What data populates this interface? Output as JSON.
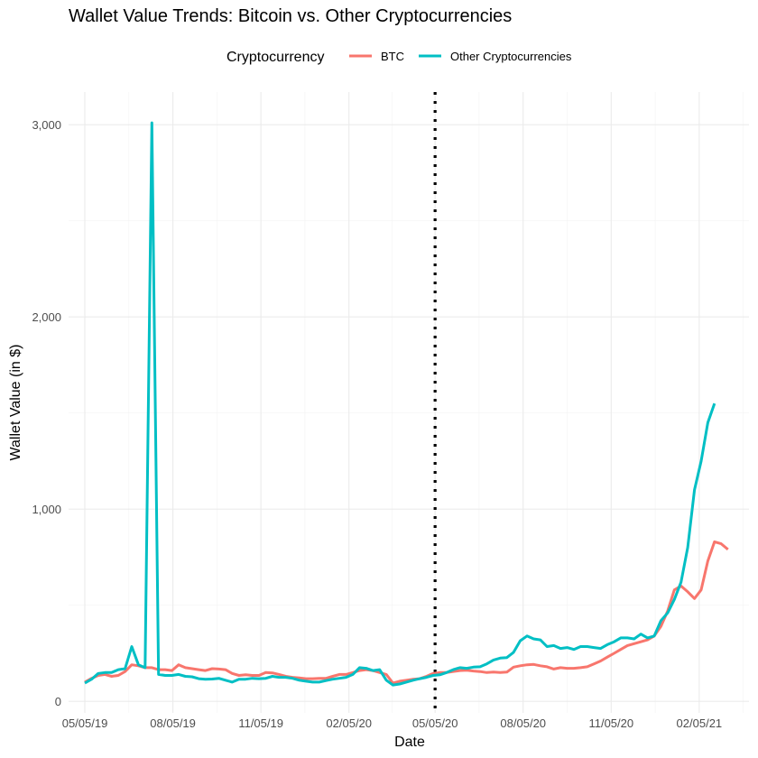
{
  "chart_data": {
    "type": "line",
    "title": "Wallet Value Trends: Bitcoin vs. Other Cryptocurrencies",
    "xlabel": "Date",
    "ylabel": "Wallet Value (in $)",
    "x_tick_labels": [
      "05/05/19",
      "08/05/19",
      "11/05/19",
      "02/05/20",
      "05/05/20",
      "08/05/20",
      "11/05/20",
      "02/05/21"
    ],
    "x_tick_values": [
      "2019-05-05",
      "2019-08-05",
      "2019-11-05",
      "2020-02-05",
      "2020-05-05",
      "2020-08-05",
      "2020-11-05",
      "2021-02-05"
    ],
    "x_range": [
      "2019-04-18",
      "2021-03-29"
    ],
    "y_tick_labels": [
      "0",
      "1,000",
      "2,000",
      "3,000"
    ],
    "y_tick_values": [
      0,
      1000,
      2000,
      3000
    ],
    "ylim": [
      -60,
      3170
    ],
    "grid": true,
    "legend": {
      "title": "Cryptocurrency",
      "placement": "top"
    },
    "reference_line": {
      "x": "2020-05-05",
      "style": "dotted",
      "color": "#000000"
    },
    "series": [
      {
        "name": "BTC",
        "color": "#F8766D",
        "points": [
          [
            "2019-05-05",
            100
          ],
          [
            "2019-05-12",
            120
          ],
          [
            "2019-05-19",
            135
          ],
          [
            "2019-05-26",
            140
          ],
          [
            "2019-06-02",
            130
          ],
          [
            "2019-06-09",
            135
          ],
          [
            "2019-06-16",
            155
          ],
          [
            "2019-06-23",
            190
          ],
          [
            "2019-06-30",
            185
          ],
          [
            "2019-07-07",
            175
          ],
          [
            "2019-07-14",
            175
          ],
          [
            "2019-07-21",
            165
          ],
          [
            "2019-07-28",
            165
          ],
          [
            "2019-08-04",
            160
          ],
          [
            "2019-08-11",
            190
          ],
          [
            "2019-08-18",
            175
          ],
          [
            "2019-08-25",
            170
          ],
          [
            "2019-09-01",
            165
          ],
          [
            "2019-09-08",
            160
          ],
          [
            "2019-09-15",
            170
          ],
          [
            "2019-09-22",
            168
          ],
          [
            "2019-09-29",
            165
          ],
          [
            "2019-10-06",
            145
          ],
          [
            "2019-10-13",
            135
          ],
          [
            "2019-10-20",
            138
          ],
          [
            "2019-10-27",
            135
          ],
          [
            "2019-11-03",
            135
          ],
          [
            "2019-11-10",
            150
          ],
          [
            "2019-11-17",
            148
          ],
          [
            "2019-11-24",
            140
          ],
          [
            "2019-12-01",
            130
          ],
          [
            "2019-12-08",
            125
          ],
          [
            "2019-12-15",
            122
          ],
          [
            "2019-12-22",
            118
          ],
          [
            "2019-12-29",
            118
          ],
          [
            "2020-01-05",
            120
          ],
          [
            "2020-01-12",
            120
          ],
          [
            "2020-01-19",
            130
          ],
          [
            "2020-01-26",
            140
          ],
          [
            "2020-02-02",
            140
          ],
          [
            "2020-02-09",
            150
          ],
          [
            "2020-02-16",
            160
          ],
          [
            "2020-02-23",
            165
          ],
          [
            "2020-03-01",
            160
          ],
          [
            "2020-03-08",
            150
          ],
          [
            "2020-03-15",
            140
          ],
          [
            "2020-03-22",
            95
          ],
          [
            "2020-03-29",
            105
          ],
          [
            "2020-04-05",
            110
          ],
          [
            "2020-04-12",
            115
          ],
          [
            "2020-04-19",
            118
          ],
          [
            "2020-04-26",
            130
          ],
          [
            "2020-05-03",
            145
          ],
          [
            "2020-05-10",
            150
          ],
          [
            "2020-05-17",
            150
          ],
          [
            "2020-05-24",
            155
          ],
          [
            "2020-05-31",
            160
          ],
          [
            "2020-06-07",
            162
          ],
          [
            "2020-06-14",
            158
          ],
          [
            "2020-06-21",
            155
          ],
          [
            "2020-06-28",
            150
          ],
          [
            "2020-07-05",
            152
          ],
          [
            "2020-07-12",
            150
          ],
          [
            "2020-07-19",
            152
          ],
          [
            "2020-07-26",
            178
          ],
          [
            "2020-08-02",
            185
          ],
          [
            "2020-08-09",
            190
          ],
          [
            "2020-08-16",
            192
          ],
          [
            "2020-08-23",
            185
          ],
          [
            "2020-08-30",
            180
          ],
          [
            "2020-09-06",
            168
          ],
          [
            "2020-09-13",
            175
          ],
          [
            "2020-09-20",
            172
          ],
          [
            "2020-09-27",
            172
          ],
          [
            "2020-10-04",
            175
          ],
          [
            "2020-10-11",
            180
          ],
          [
            "2020-10-18",
            195
          ],
          [
            "2020-10-25",
            210
          ],
          [
            "2020-11-01",
            230
          ],
          [
            "2020-11-08",
            250
          ],
          [
            "2020-11-15",
            270
          ],
          [
            "2020-11-22",
            290
          ],
          [
            "2020-11-29",
            300
          ],
          [
            "2020-12-06",
            310
          ],
          [
            "2020-12-13",
            320
          ],
          [
            "2020-12-20",
            340
          ],
          [
            "2020-12-27",
            390
          ],
          [
            "2021-01-03",
            470
          ],
          [
            "2021-01-10",
            580
          ],
          [
            "2021-01-17",
            600
          ],
          [
            "2021-01-24",
            570
          ],
          [
            "2021-01-31",
            535
          ],
          [
            "2021-02-07",
            580
          ],
          [
            "2021-02-14",
            730
          ],
          [
            "2021-02-21",
            830
          ],
          [
            "2021-02-28",
            820
          ],
          [
            "2021-03-07",
            790
          ]
        ]
      },
      {
        "name": "Other Cryptocurrencies",
        "color": "#00BFC4",
        "points": [
          [
            "2019-05-05",
            95
          ],
          [
            "2019-05-12",
            115
          ],
          [
            "2019-05-19",
            145
          ],
          [
            "2019-05-26",
            150
          ],
          [
            "2019-06-02",
            150
          ],
          [
            "2019-06-09",
            165
          ],
          [
            "2019-06-16",
            170
          ],
          [
            "2019-06-23",
            285
          ],
          [
            "2019-06-30",
            190
          ],
          [
            "2019-07-07",
            175
          ],
          [
            "2019-07-14",
            3010
          ],
          [
            "2019-07-21",
            140
          ],
          [
            "2019-07-28",
            135
          ],
          [
            "2019-08-04",
            135
          ],
          [
            "2019-08-11",
            140
          ],
          [
            "2019-08-18",
            130
          ],
          [
            "2019-08-25",
            128
          ],
          [
            "2019-09-01",
            118
          ],
          [
            "2019-09-08",
            115
          ],
          [
            "2019-09-15",
            116
          ],
          [
            "2019-09-22",
            120
          ],
          [
            "2019-09-29",
            110
          ],
          [
            "2019-10-06",
            100
          ],
          [
            "2019-10-13",
            115
          ],
          [
            "2019-10-20",
            115
          ],
          [
            "2019-10-27",
            120
          ],
          [
            "2019-11-03",
            118
          ],
          [
            "2019-11-10",
            120
          ],
          [
            "2019-11-17",
            130
          ],
          [
            "2019-11-24",
            125
          ],
          [
            "2019-12-01",
            125
          ],
          [
            "2019-12-08",
            120
          ],
          [
            "2019-12-15",
            110
          ],
          [
            "2019-12-22",
            105
          ],
          [
            "2019-12-29",
            100
          ],
          [
            "2020-01-05",
            100
          ],
          [
            "2020-01-12",
            108
          ],
          [
            "2020-01-19",
            115
          ],
          [
            "2020-01-26",
            120
          ],
          [
            "2020-02-02",
            125
          ],
          [
            "2020-02-09",
            140
          ],
          [
            "2020-02-16",
            175
          ],
          [
            "2020-02-23",
            172
          ],
          [
            "2020-03-01",
            160
          ],
          [
            "2020-03-08",
            165
          ],
          [
            "2020-03-15",
            110
          ],
          [
            "2020-03-22",
            85
          ],
          [
            "2020-03-29",
            90
          ],
          [
            "2020-04-05",
            100
          ],
          [
            "2020-04-12",
            110
          ],
          [
            "2020-04-19",
            118
          ],
          [
            "2020-04-26",
            125
          ],
          [
            "2020-05-03",
            135
          ],
          [
            "2020-05-10",
            138
          ],
          [
            "2020-05-17",
            150
          ],
          [
            "2020-05-24",
            165
          ],
          [
            "2020-05-31",
            175
          ],
          [
            "2020-06-07",
            172
          ],
          [
            "2020-06-14",
            178
          ],
          [
            "2020-06-21",
            180
          ],
          [
            "2020-06-28",
            195
          ],
          [
            "2020-07-05",
            215
          ],
          [
            "2020-07-12",
            225
          ],
          [
            "2020-07-19",
            228
          ],
          [
            "2020-07-26",
            255
          ],
          [
            "2020-08-02",
            315
          ],
          [
            "2020-08-09",
            340
          ],
          [
            "2020-08-16",
            325
          ],
          [
            "2020-08-23",
            320
          ],
          [
            "2020-08-30",
            285
          ],
          [
            "2020-09-06",
            290
          ],
          [
            "2020-09-13",
            275
          ],
          [
            "2020-09-20",
            280
          ],
          [
            "2020-09-27",
            270
          ],
          [
            "2020-10-04",
            285
          ],
          [
            "2020-10-11",
            285
          ],
          [
            "2020-10-18",
            280
          ],
          [
            "2020-10-25",
            275
          ],
          [
            "2020-11-01",
            295
          ],
          [
            "2020-11-08",
            310
          ],
          [
            "2020-11-15",
            330
          ],
          [
            "2020-11-22",
            330
          ],
          [
            "2020-11-29",
            325
          ],
          [
            "2020-12-06",
            350
          ],
          [
            "2020-12-13",
            330
          ],
          [
            "2020-12-20",
            340
          ],
          [
            "2020-12-27",
            420
          ],
          [
            "2021-01-03",
            460
          ],
          [
            "2021-01-10",
            530
          ],
          [
            "2021-01-17",
            620
          ],
          [
            "2021-01-24",
            800
          ],
          [
            "2021-01-31",
            1100
          ],
          [
            "2021-02-07",
            1250
          ],
          [
            "2021-02-14",
            1450
          ],
          [
            "2021-02-21",
            1550
          ]
        ]
      }
    ]
  }
}
